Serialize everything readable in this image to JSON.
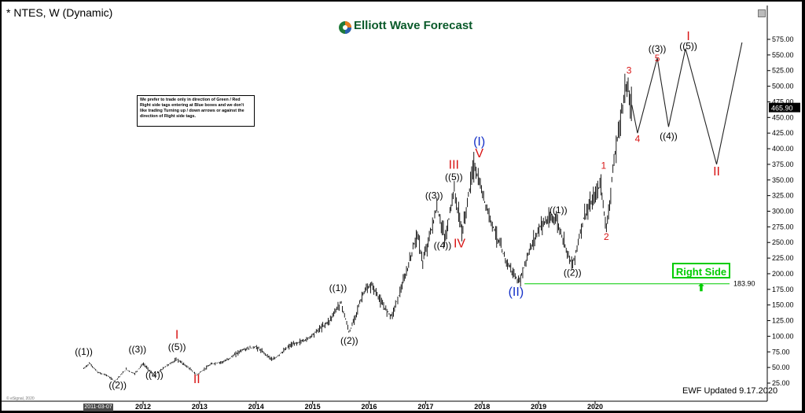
{
  "header": {
    "title": "* NTES, W (Dynamic)"
  },
  "brand": {
    "name": "Elliott Wave Forecast",
    "color_text": "#0a5a2a"
  },
  "note": {
    "text": "We prefer to trade only in direction of Green / Red Right side tags entering at Blue boxes and we don't like trading Turning up / down arrows or against the direction of Right side tags."
  },
  "right_side": {
    "label": "Right Side",
    "level": "183.90",
    "color": "#00cc00"
  },
  "footer": {
    "updated": "EWF Updated 9.17.2020",
    "credit": "© eSignal, 2020",
    "date_flag": "2011-03-07"
  },
  "colors": {
    "price": "#000000",
    "degree_black": "#000000",
    "degree_red": "#d81414",
    "degree_blue": "#1430c8",
    "level_line": "#00cc00"
  },
  "chart_data": {
    "type": "line",
    "symbol": "NTES",
    "interval": "W",
    "title": "* NTES, W (Dynamic)",
    "ylim": [
      0,
      600
    ],
    "y_ticks": [
      25,
      50,
      75,
      100,
      125,
      150,
      175,
      200,
      225,
      250,
      275,
      300,
      325,
      350,
      375,
      400,
      425,
      450,
      475,
      500,
      525,
      550,
      575
    ],
    "x_ticks": [
      "2012",
      "2013",
      "2014",
      "2015",
      "2016",
      "2017",
      "2018",
      "2019",
      "2020"
    ],
    "last_price": "465.90",
    "levels": [
      {
        "value": 183.9,
        "label": "183.90"
      }
    ],
    "price": [
      [
        2010.95,
        48
      ],
      [
        2011.05,
        57
      ],
      [
        2011.2,
        42
      ],
      [
        2011.35,
        38
      ],
      [
        2011.5,
        28
      ],
      [
        2011.7,
        47
      ],
      [
        2011.85,
        40
      ],
      [
        2012.0,
        56
      ],
      [
        2012.2,
        37
      ],
      [
        2012.4,
        52
      ],
      [
        2012.6,
        63
      ],
      [
        2012.8,
        50
      ],
      [
        2012.95,
        38
      ],
      [
        2013.2,
        55
      ],
      [
        2013.45,
        60
      ],
      [
        2013.75,
        78
      ],
      [
        2014.0,
        83
      ],
      [
        2014.3,
        62
      ],
      [
        2014.6,
        85
      ],
      [
        2014.9,
        95
      ],
      [
        2015.3,
        125
      ],
      [
        2015.5,
        155
      ],
      [
        2015.65,
        105
      ],
      [
        2015.9,
        170
      ],
      [
        2016.05,
        182
      ],
      [
        2016.25,
        148
      ],
      [
        2016.4,
        132
      ],
      [
        2016.65,
        198
      ],
      [
        2016.85,
        265
      ],
      [
        2016.95,
        218
      ],
      [
        2017.2,
        305
      ],
      [
        2017.35,
        255
      ],
      [
        2017.5,
        335
      ],
      [
        2017.65,
        265
      ],
      [
        2017.85,
        375
      ],
      [
        2018.1,
        300
      ],
      [
        2018.4,
        225
      ],
      [
        2018.65,
        185
      ],
      [
        2018.85,
        240
      ],
      [
        2019.05,
        280
      ],
      [
        2019.3,
        290
      ],
      [
        2019.6,
        212
      ],
      [
        2019.8,
        290
      ],
      [
        2019.95,
        315
      ],
      [
        2020.1,
        345
      ],
      [
        2020.2,
        270
      ],
      [
        2020.35,
        390
      ],
      [
        2020.55,
        505
      ],
      [
        2020.65,
        465.9
      ]
    ],
    "projection": [
      [
        2020.65,
        470
      ],
      [
        2020.75,
        425
      ],
      [
        2021.1,
        545
      ],
      [
        2021.3,
        435
      ],
      [
        2021.6,
        560
      ],
      [
        2022.15,
        375
      ],
      [
        2022.6,
        570
      ]
    ],
    "labels": [
      {
        "text": "((1))",
        "x": 2010.95,
        "y": 70,
        "color": "black"
      },
      {
        "text": "((2))",
        "x": 2011.55,
        "y": 17,
        "color": "black"
      },
      {
        "text": "((3))",
        "x": 2011.9,
        "y": 74,
        "color": "black"
      },
      {
        "text": "((4))",
        "x": 2012.2,
        "y": 33,
        "color": "black"
      },
      {
        "text": "I",
        "x": 2012.6,
        "y": 96,
        "color": "red"
      },
      {
        "text": "((5))",
        "x": 2012.6,
        "y": 78,
        "color": "black"
      },
      {
        "text": "II",
        "x": 2012.95,
        "y": 25,
        "color": "red"
      },
      {
        "text": "((1))",
        "x": 2015.45,
        "y": 172,
        "color": "black"
      },
      {
        "text": "((2))",
        "x": 2015.65,
        "y": 88,
        "color": "black"
      },
      {
        "text": "((3))",
        "x": 2017.15,
        "y": 320,
        "color": "black"
      },
      {
        "text": "((4))",
        "x": 2017.3,
        "y": 240,
        "color": "black"
      },
      {
        "text": "III",
        "x": 2017.5,
        "y": 368,
        "color": "red"
      },
      {
        "text": "((5))",
        "x": 2017.5,
        "y": 350,
        "color": "black"
      },
      {
        "text": "IV",
        "x": 2017.6,
        "y": 242,
        "color": "red"
      },
      {
        "text": "(I)",
        "x": 2017.95,
        "y": 405,
        "color": "blue"
      },
      {
        "text": "V",
        "x": 2017.95,
        "y": 386,
        "color": "red"
      },
      {
        "text": "(II)",
        "x": 2018.6,
        "y": 165,
        "color": "blue"
      },
      {
        "text": "((1))",
        "x": 2019.35,
        "y": 297,
        "color": "black"
      },
      {
        "text": "((2))",
        "x": 2019.6,
        "y": 197,
        "color": "black"
      },
      {
        "text": "1",
        "x": 2020.15,
        "y": 368,
        "color": "red"
      },
      {
        "text": "2",
        "x": 2020.2,
        "y": 254,
        "color": "red"
      },
      {
        "text": "3",
        "x": 2020.6,
        "y": 520,
        "color": "red"
      },
      {
        "text": "4",
        "x": 2020.75,
        "y": 411,
        "color": "red"
      },
      {
        "text": "((3))",
        "x": 2021.1,
        "y": 555,
        "color": "black"
      },
      {
        "text": "5",
        "x": 2021.1,
        "y": 540,
        "color": "red"
      },
      {
        "text": "((4))",
        "x": 2021.3,
        "y": 415,
        "color": "black"
      },
      {
        "text": "I",
        "x": 2021.65,
        "y": 574,
        "color": "red"
      },
      {
        "text": "((5))",
        "x": 2021.65,
        "y": 559,
        "color": "black"
      },
      {
        "text": "II",
        "x": 2022.15,
        "y": 357,
        "color": "red"
      }
    ]
  }
}
